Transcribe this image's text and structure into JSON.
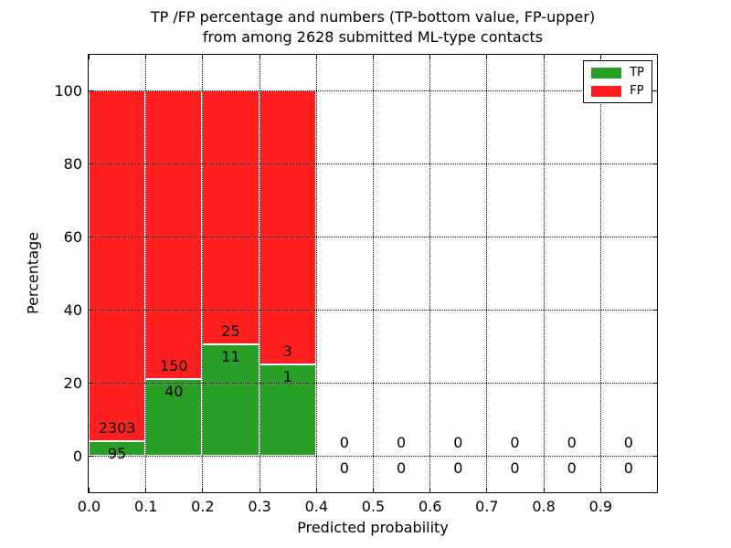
{
  "title": {
    "line1": "TP /FP percentage and numbers (TP-bottom value, FP-upper)",
    "line2": "from among 2628 submitted ML-type contacts"
  },
  "x_axis": {
    "label": "Predicted probability",
    "ticks": [
      "0.0",
      "0.1",
      "0.2",
      "0.3",
      "0.4",
      "0.5",
      "0.6",
      "0.7",
      "0.8",
      "0.9"
    ],
    "tick_values": [
      0,
      0.1,
      0.2,
      0.3,
      0.4,
      0.5,
      0.6,
      0.7,
      0.8,
      0.9
    ]
  },
  "y_axis": {
    "label": "Percentage",
    "ticks": [
      "0",
      "20",
      "40",
      "60",
      "80",
      "100"
    ],
    "tick_values": [
      0,
      20,
      40,
      60,
      80,
      100
    ]
  },
  "legend": {
    "items": [
      {
        "label": "TP",
        "color": "#28A028"
      },
      {
        "label": "FP",
        "color": "#FF1F1F"
      }
    ]
  },
  "chart_data": {
    "type": "bar",
    "stacked": true,
    "unit": "percent_of_bin_total",
    "title": "TP /FP percentage and numbers (TP-bottom value, FP-upper) from among 2628 submitted ML-type contacts",
    "xlabel": "Predicted probability",
    "ylabel": "Percentage",
    "xlim": [
      0,
      1
    ],
    "ylim": [
      -10,
      110
    ],
    "grid": true,
    "grid_style": "dotted",
    "legend_position": "upper right",
    "bin_width": 0.1,
    "bin_starts": [
      0,
      0.1,
      0.2,
      0.3,
      0.4,
      0.5,
      0.6,
      0.7,
      0.8,
      0.9
    ],
    "series": [
      {
        "name": "TP",
        "color": "#28A028",
        "counts": [
          95,
          40,
          11,
          1,
          0,
          0,
          0,
          0,
          0,
          0
        ]
      },
      {
        "name": "FP",
        "color": "#FF1F1F",
        "counts": [
          2303,
          150,
          25,
          3,
          0,
          0,
          0,
          0,
          0,
          0
        ]
      }
    ],
    "tp_percent_per_bin": [
      3.96,
      21.05,
      30.56,
      25.0,
      0,
      0,
      0,
      0,
      0,
      0
    ],
    "bar_total_percent": [
      100,
      100,
      100,
      100,
      0,
      0,
      0,
      0,
      0,
      0
    ],
    "total_contacts": 2628
  }
}
